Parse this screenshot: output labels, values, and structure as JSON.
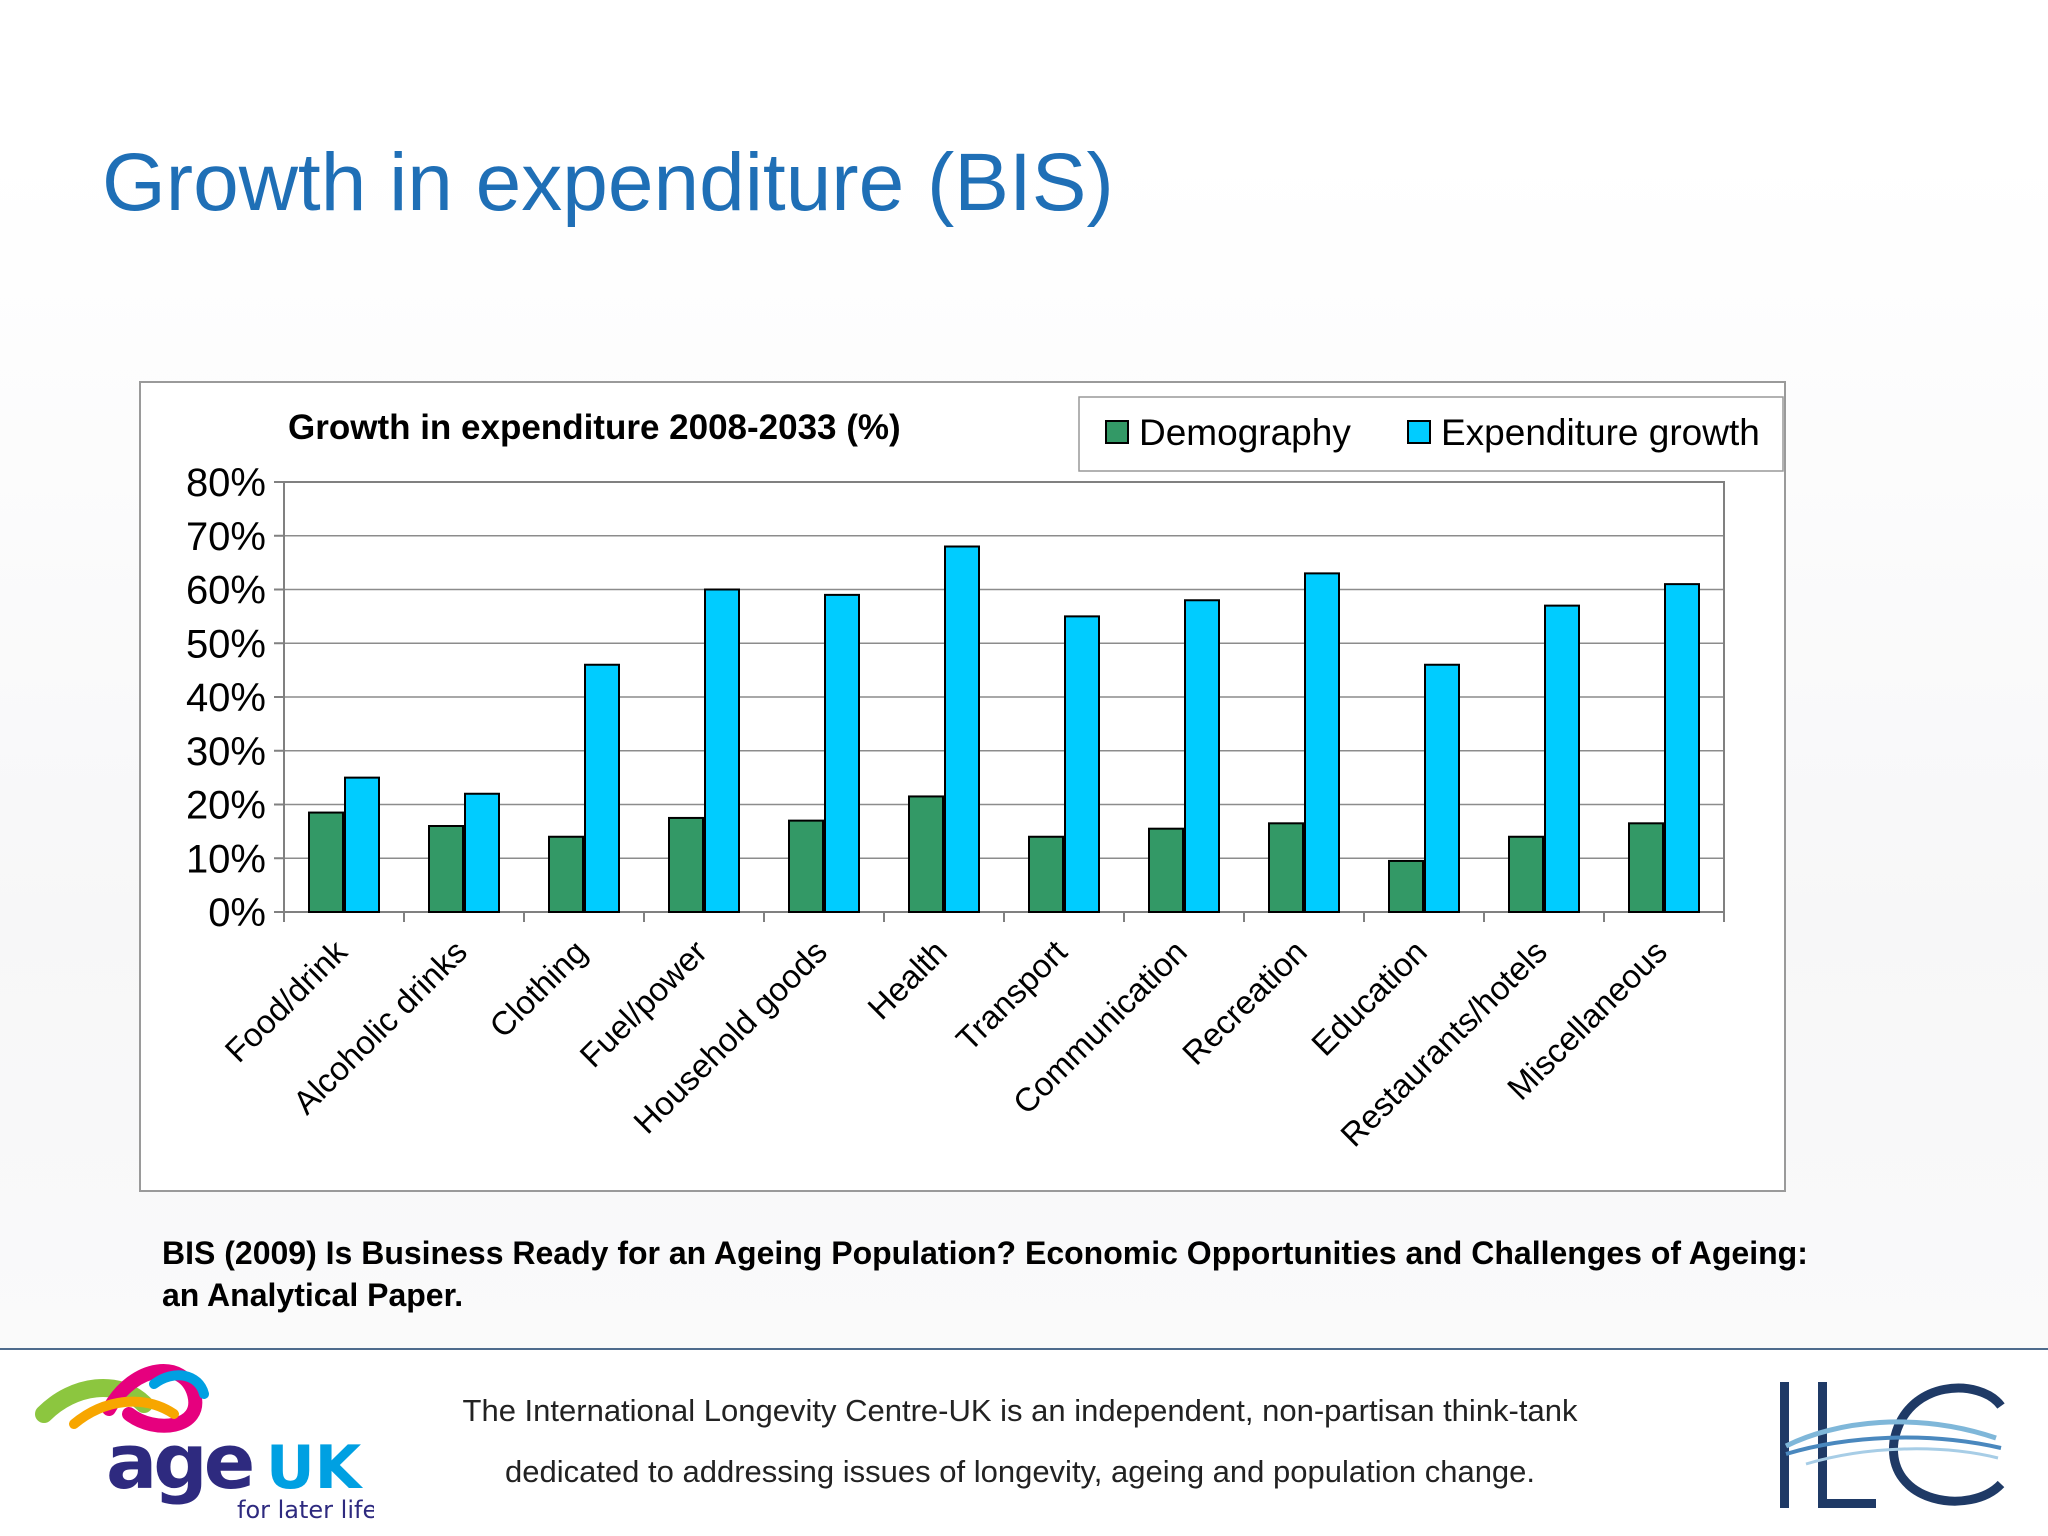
{
  "slide": {
    "title": "Growth in expenditure (BIS)",
    "citation": "BIS (2009) Is Business Ready for an Ageing Population? Economic Opportunities and Challenges of Ageing: an Analytical Paper."
  },
  "chart_data": {
    "type": "bar",
    "title": "Growth in expenditure 2008-2033 (%)",
    "xlabel": "",
    "ylabel": "",
    "ylim": [
      0,
      80
    ],
    "y_ticks": [
      "0%",
      "10%",
      "20%",
      "30%",
      "40%",
      "50%",
      "60%",
      "70%",
      "80%"
    ],
    "grid": true,
    "legend_position": "top-right",
    "categories": [
      "Food/drink",
      "Alcoholic drinks",
      "Clothing",
      "Fuel/power",
      "Household goods",
      "Health",
      "Transport",
      "Communication",
      "Recreation",
      "Education",
      "Restaurants/hotels",
      "Miscellaneous"
    ],
    "series": [
      {
        "name": "Demography",
        "color": "#339966",
        "values": [
          18.5,
          16,
          14,
          17.5,
          17,
          21.5,
          14,
          15.5,
          16.5,
          9.5,
          14,
          16.5
        ]
      },
      {
        "name": "Expenditure growth",
        "color": "#00ccff",
        "values": [
          25,
          22,
          46,
          60,
          59,
          68,
          55,
          58,
          63,
          46,
          57,
          61
        ]
      }
    ]
  },
  "footer": {
    "line1": "The International Longevity Centre-UK is an independent, non-partisan think-tank",
    "line2": "dedicated to addressing issues of longevity, ageing and population change.",
    "age_uk_logo": "Age UK for later life logo",
    "ilc_logo": "ILC logo"
  }
}
